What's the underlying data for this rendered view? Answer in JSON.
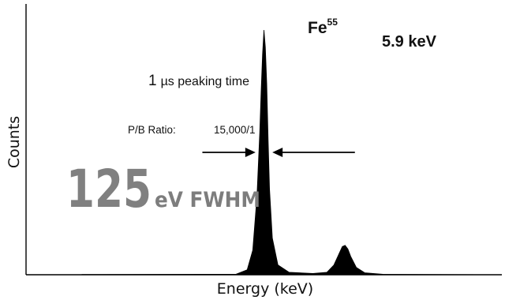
{
  "chart_data": {
    "type": "line",
    "title": "",
    "xlabel": "Energy (keV)",
    "ylabel": "Counts",
    "xlim": [
      4.2,
      7.6
    ],
    "ylim": [
      0,
      1.0
    ],
    "grid": false,
    "x_ticks": [],
    "y_ticks": [],
    "series": [
      {
        "x": [
          4.6,
          5.7,
          5.78,
          5.82,
          5.85,
          5.87,
          5.88,
          5.89,
          5.9,
          5.91,
          5.92,
          5.93,
          5.94,
          5.96,
          6.0,
          6.08,
          6.25,
          6.35,
          6.4,
          6.44,
          6.46,
          6.48,
          6.5,
          6.52,
          6.56,
          6.62,
          6.75,
          7.6
        ],
        "y": [
          0.001,
          0.002,
          0.02,
          0.1,
          0.32,
          0.58,
          0.75,
          0.9,
          1.0,
          0.93,
          0.78,
          0.55,
          0.35,
          0.15,
          0.04,
          0.01,
          0.005,
          0.01,
          0.04,
          0.09,
          0.115,
          0.12,
          0.105,
          0.075,
          0.03,
          0.008,
          0.002,
          0.0
        ]
      }
    ],
    "annotations": {
      "peak_element": "Fe",
      "peak_isotope": "55",
      "peak_energy": "5.9 keV",
      "peaking_time_value": "1",
      "peaking_time_text": "µs peaking time",
      "pb_ratio_label": "P/B Ratio:",
      "pb_ratio_value": "15,000/1",
      "fwhm_value": "125",
      "fwhm_unit": "eV FWHM",
      "fwhm_marker": {
        "from": 5.46,
        "to": 5.84,
        "back_from": 5.96,
        "back_to": 6.55,
        "level": 0.5
      }
    },
    "colors": {
      "peak_fill": "#000000",
      "fwhm_number": "#808080",
      "fwhm_unit": "#7d7d7d",
      "axis": "#000000"
    }
  }
}
